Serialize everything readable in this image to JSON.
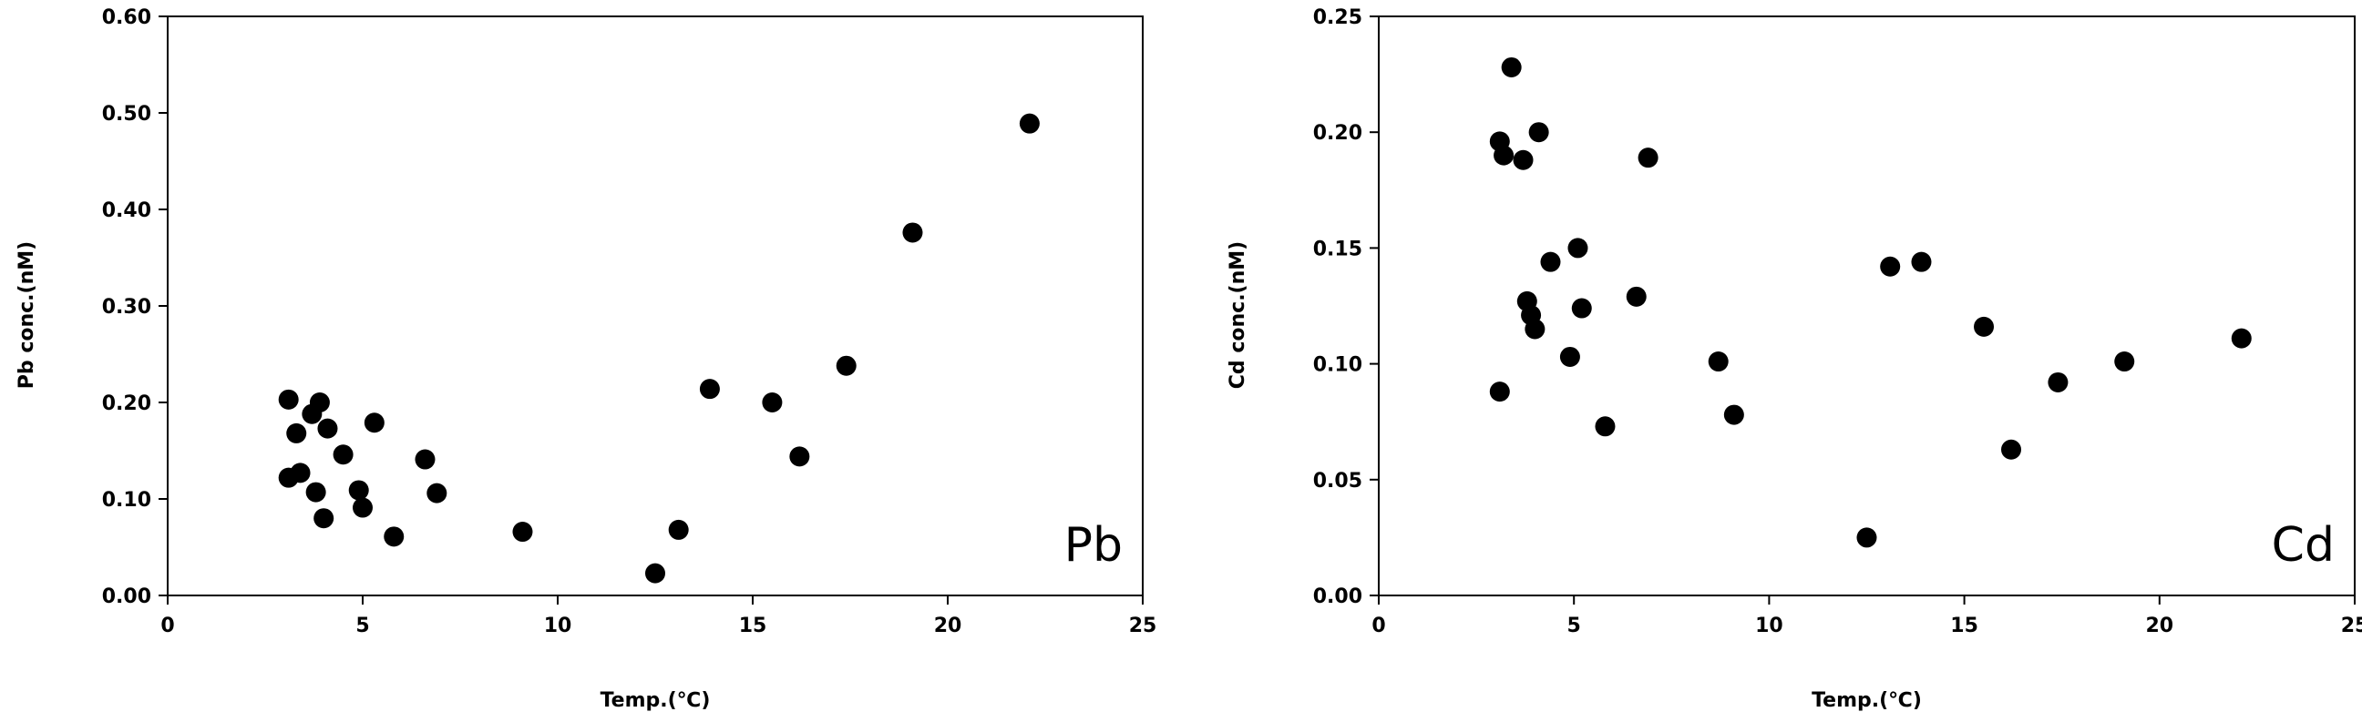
{
  "chart_data": [
    {
      "type": "scatter",
      "panel_label": "Pb",
      "xlabel": "Temp.(℃)",
      "ylabel": "Pb conc.(nM)",
      "xlim": [
        0,
        25
      ],
      "ylim": [
        0,
        0.6
      ],
      "xticks": [
        0,
        5,
        10,
        15,
        20,
        25
      ],
      "yticks": [
        0,
        0.1,
        0.2,
        0.3,
        0.4,
        0.5,
        0.6
      ],
      "xtick_labels": [
        "0",
        "5",
        "10",
        "15",
        "20",
        "25"
      ],
      "ytick_labels": [
        "0.00",
        "0.10",
        "0.20",
        "0.30",
        "0.40",
        "0.50",
        "0.60"
      ],
      "grid": false,
      "points": [
        {
          "x": 3.1,
          "y": 0.203
        },
        {
          "x": 3.1,
          "y": 0.122
        },
        {
          "x": 3.3,
          "y": 0.168
        },
        {
          "x": 3.4,
          "y": 0.127
        },
        {
          "x": 3.7,
          "y": 0.188
        },
        {
          "x": 3.8,
          "y": 0.107
        },
        {
          "x": 3.9,
          "y": 0.2
        },
        {
          "x": 4.0,
          "y": 0.08
        },
        {
          "x": 4.1,
          "y": 0.173
        },
        {
          "x": 4.5,
          "y": 0.146
        },
        {
          "x": 4.9,
          "y": 0.109
        },
        {
          "x": 5.0,
          "y": 0.091
        },
        {
          "x": 5.3,
          "y": 0.179
        },
        {
          "x": 5.8,
          "y": 0.061
        },
        {
          "x": 6.6,
          "y": 0.141
        },
        {
          "x": 6.9,
          "y": 0.106
        },
        {
          "x": 9.1,
          "y": 0.066
        },
        {
          "x": 12.5,
          "y": 0.023
        },
        {
          "x": 13.1,
          "y": 0.068
        },
        {
          "x": 13.9,
          "y": 0.214
        },
        {
          "x": 15.5,
          "y": 0.2
        },
        {
          "x": 16.2,
          "y": 0.144
        },
        {
          "x": 17.4,
          "y": 0.238
        },
        {
          "x": 19.1,
          "y": 0.376
        },
        {
          "x": 22.1,
          "y": 0.489
        }
      ]
    },
    {
      "type": "scatter",
      "panel_label": "Cd",
      "xlabel": "Temp.(℃)",
      "ylabel": "Cd conc.(nM)",
      "xlim": [
        0,
        25
      ],
      "ylim": [
        0,
        0.25
      ],
      "xticks": [
        0,
        5,
        10,
        15,
        20,
        25
      ],
      "yticks": [
        0,
        0.05,
        0.1,
        0.15,
        0.2,
        0.25
      ],
      "xtick_labels": [
        "0",
        "5",
        "10",
        "15",
        "20",
        "25"
      ],
      "ytick_labels": [
        "0.00",
        "0.05",
        "0.10",
        "0.15",
        "0.20",
        "0.25"
      ],
      "grid": false,
      "points": [
        {
          "x": 3.1,
          "y": 0.196
        },
        {
          "x": 3.1,
          "y": 0.088
        },
        {
          "x": 3.2,
          "y": 0.19
        },
        {
          "x": 3.4,
          "y": 0.228
        },
        {
          "x": 3.7,
          "y": 0.188
        },
        {
          "x": 3.8,
          "y": 0.127
        },
        {
          "x": 3.9,
          "y": 0.121
        },
        {
          "x": 4.0,
          "y": 0.115
        },
        {
          "x": 4.1,
          "y": 0.2
        },
        {
          "x": 4.4,
          "y": 0.144
        },
        {
          "x": 4.9,
          "y": 0.103
        },
        {
          "x": 5.1,
          "y": 0.15
        },
        {
          "x": 5.2,
          "y": 0.124
        },
        {
          "x": 5.8,
          "y": 0.073
        },
        {
          "x": 6.6,
          "y": 0.129
        },
        {
          "x": 6.9,
          "y": 0.189
        },
        {
          "x": 8.7,
          "y": 0.101
        },
        {
          "x": 9.1,
          "y": 0.078
        },
        {
          "x": 12.5,
          "y": 0.025
        },
        {
          "x": 13.1,
          "y": 0.142
        },
        {
          "x": 13.9,
          "y": 0.144
        },
        {
          "x": 15.5,
          "y": 0.116
        },
        {
          "x": 16.2,
          "y": 0.063
        },
        {
          "x": 17.4,
          "y": 0.092
        },
        {
          "x": 19.1,
          "y": 0.101
        },
        {
          "x": 22.1,
          "y": 0.111
        }
      ]
    }
  ]
}
